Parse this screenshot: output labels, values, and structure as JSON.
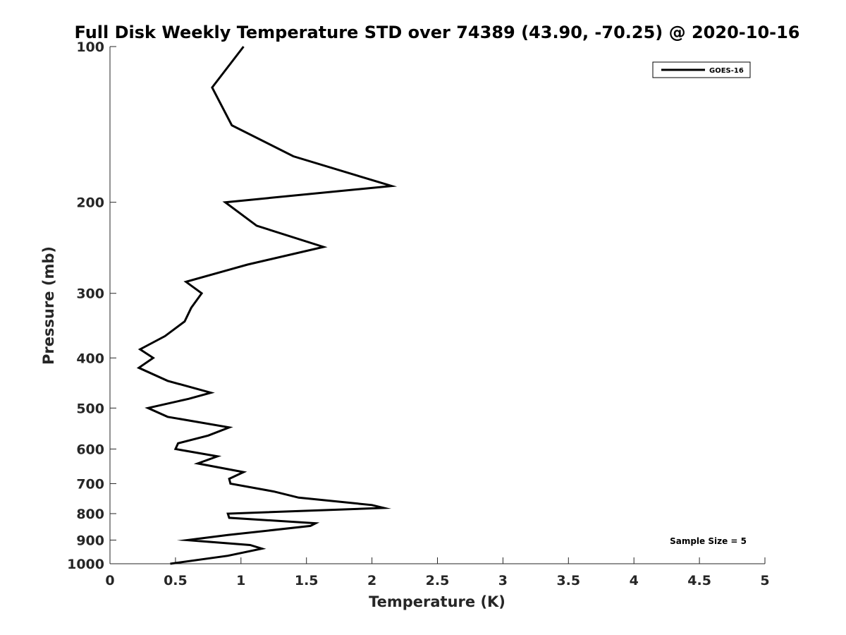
{
  "chart_data": {
    "type": "line",
    "title": "Full Disk Weekly Temperature STD over 74389 (43.90, -70.25) @ 2020-10-16",
    "xlabel": "Temperature (K)",
    "ylabel": "Pressure (mb)",
    "xlim": [
      0,
      5
    ],
    "ylim": [
      100,
      1000
    ],
    "yscale": "log",
    "y_reversed": true,
    "grid": false,
    "legend_position": "top-right",
    "xticks": [
      0,
      0.5,
      1,
      1.5,
      2,
      2.5,
      3,
      3.5,
      4,
      4.5,
      5
    ],
    "xtick_labels": [
      "0",
      "0.5",
      "1",
      "1.5",
      "2",
      "2.5",
      "3",
      "3.5",
      "4",
      "4.5",
      "5"
    ],
    "yticks": [
      100,
      200,
      300,
      400,
      500,
      600,
      700,
      800,
      900,
      1000
    ],
    "ytick_labels": [
      "100",
      "200",
      "300",
      "400",
      "500",
      "600",
      "700",
      "800",
      "900",
      "1000"
    ],
    "series": [
      {
        "name": "GOES-16",
        "color": "#000000",
        "points": [
          [
            1.02,
            100
          ],
          [
            0.78,
            120
          ],
          [
            0.93,
            142
          ],
          [
            1.4,
            163
          ],
          [
            2.15,
            186
          ],
          [
            0.88,
            200
          ],
          [
            1.12,
            222
          ],
          [
            1.63,
            244
          ],
          [
            1.05,
            264
          ],
          [
            0.58,
            285
          ],
          [
            0.7,
            300
          ],
          [
            0.62,
            320
          ],
          [
            0.57,
            340
          ],
          [
            0.42,
            363
          ],
          [
            0.23,
            385
          ],
          [
            0.33,
            400
          ],
          [
            0.22,
            418
          ],
          [
            0.44,
            443
          ],
          [
            0.77,
            467
          ],
          [
            0.6,
            480
          ],
          [
            0.29,
            500
          ],
          [
            0.44,
            520
          ],
          [
            0.91,
            545
          ],
          [
            0.75,
            565
          ],
          [
            0.52,
            585
          ],
          [
            0.5,
            600
          ],
          [
            0.82,
            620
          ],
          [
            0.67,
            640
          ],
          [
            1.02,
            665
          ],
          [
            0.91,
            685
          ],
          [
            0.92,
            700
          ],
          [
            1.25,
            725
          ],
          [
            1.44,
            745
          ],
          [
            2.0,
            770
          ],
          [
            2.09,
            780
          ],
          [
            0.9,
            800
          ],
          [
            0.91,
            815
          ],
          [
            1.57,
            835
          ],
          [
            1.53,
            845
          ],
          [
            0.9,
            880
          ],
          [
            0.59,
            900
          ],
          [
            1.07,
            920
          ],
          [
            1.16,
            935
          ],
          [
            0.9,
            965
          ],
          [
            0.46,
            1000
          ]
        ]
      }
    ],
    "annotation": "Sample Size = 5"
  }
}
